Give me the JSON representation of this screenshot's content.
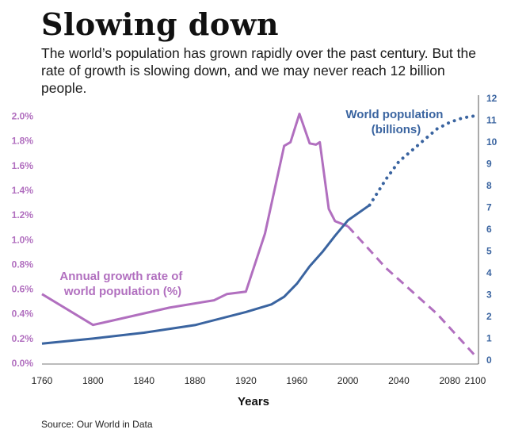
{
  "header": {
    "title": "Slowing down",
    "subtitle": "The world’s population has grown rapidly over the past century. But the rate of growth is slowing down, and we may never reach 12 billion people."
  },
  "footer": {
    "source": "Source: Our World in Data"
  },
  "colors": {
    "growth": "#b16fbf",
    "population": "#3a64a0",
    "axis_left": "#b16fbf",
    "axis_right": "#3a64a0"
  },
  "chart_data": {
    "type": "line",
    "xlabel": "Years",
    "xlim": [
      1760,
      2100
    ],
    "x_ticks": [
      1760,
      1800,
      1840,
      1880,
      1920,
      1960,
      2000,
      2040,
      2080,
      2100
    ],
    "left_axis": {
      "ylim": [
        0,
        2.1
      ],
      "ticks": [
        0,
        0.2,
        0.4,
        0.6,
        0.8,
        1.0,
        1.2,
        1.4,
        1.6,
        1.8,
        2.0
      ],
      "tick_labels": [
        "0.0%",
        "0.2%",
        "0.4%",
        "0.6%",
        "0.8%",
        "1.0%",
        "1.2%",
        "1.4%",
        "1.6%",
        "1.8%",
        "2.0%"
      ]
    },
    "right_axis": {
      "ylim": [
        -0.15,
        12
      ],
      "ticks": [
        0,
        1,
        2,
        3,
        4,
        5,
        6,
        7,
        8,
        9,
        10,
        11,
        12
      ],
      "tick_labels": [
        "0",
        "1",
        "2",
        "3",
        "4",
        "5",
        "6",
        "7",
        "8",
        "9",
        "10",
        "11",
        "12"
      ]
    },
    "series": [
      {
        "name": "Annual growth rate of world population (%)",
        "label_lines": [
          "Annual growth rate of",
          "world population (%)"
        ],
        "axis": "left",
        "historical": [
          [
            1760,
            0.56
          ],
          [
            1800,
            0.31
          ],
          [
            1860,
            0.45
          ],
          [
            1895,
            0.51
          ],
          [
            1905,
            0.56
          ],
          [
            1920,
            0.58
          ],
          [
            1935,
            1.05
          ],
          [
            1950,
            1.76
          ],
          [
            1955,
            1.79
          ],
          [
            1962,
            2.02
          ],
          [
            1970,
            1.78
          ],
          [
            1975,
            1.77
          ],
          [
            1978,
            1.79
          ],
          [
            1985,
            1.25
          ],
          [
            1990,
            1.15
          ],
          [
            2000,
            1.11
          ]
        ],
        "projected": [
          [
            2000,
            1.11
          ],
          [
            2030,
            0.77
          ],
          [
            2070,
            0.4
          ],
          [
            2100,
            0.06
          ]
        ]
      },
      {
        "name": "World population (billions)",
        "label_lines": [
          "World population",
          "(billions)"
        ],
        "axis": "right",
        "historical": [
          [
            1760,
            0.75
          ],
          [
            1800,
            0.98
          ],
          [
            1840,
            1.25
          ],
          [
            1880,
            1.6
          ],
          [
            1920,
            2.2
          ],
          [
            1940,
            2.55
          ],
          [
            1950,
            2.9
          ],
          [
            1960,
            3.5
          ],
          [
            1970,
            4.3
          ],
          [
            1980,
            4.95
          ],
          [
            1990,
            5.7
          ],
          [
            2000,
            6.4
          ],
          [
            2017,
            7.1
          ]
        ],
        "projected": [
          [
            2017,
            7.1
          ],
          [
            2030,
            8.3
          ],
          [
            2040,
            9.1
          ],
          [
            2050,
            9.6
          ],
          [
            2060,
            10.1
          ],
          [
            2070,
            10.6
          ],
          [
            2080,
            10.9
          ],
          [
            2090,
            11.1
          ],
          [
            2100,
            11.2
          ]
        ]
      }
    ]
  }
}
